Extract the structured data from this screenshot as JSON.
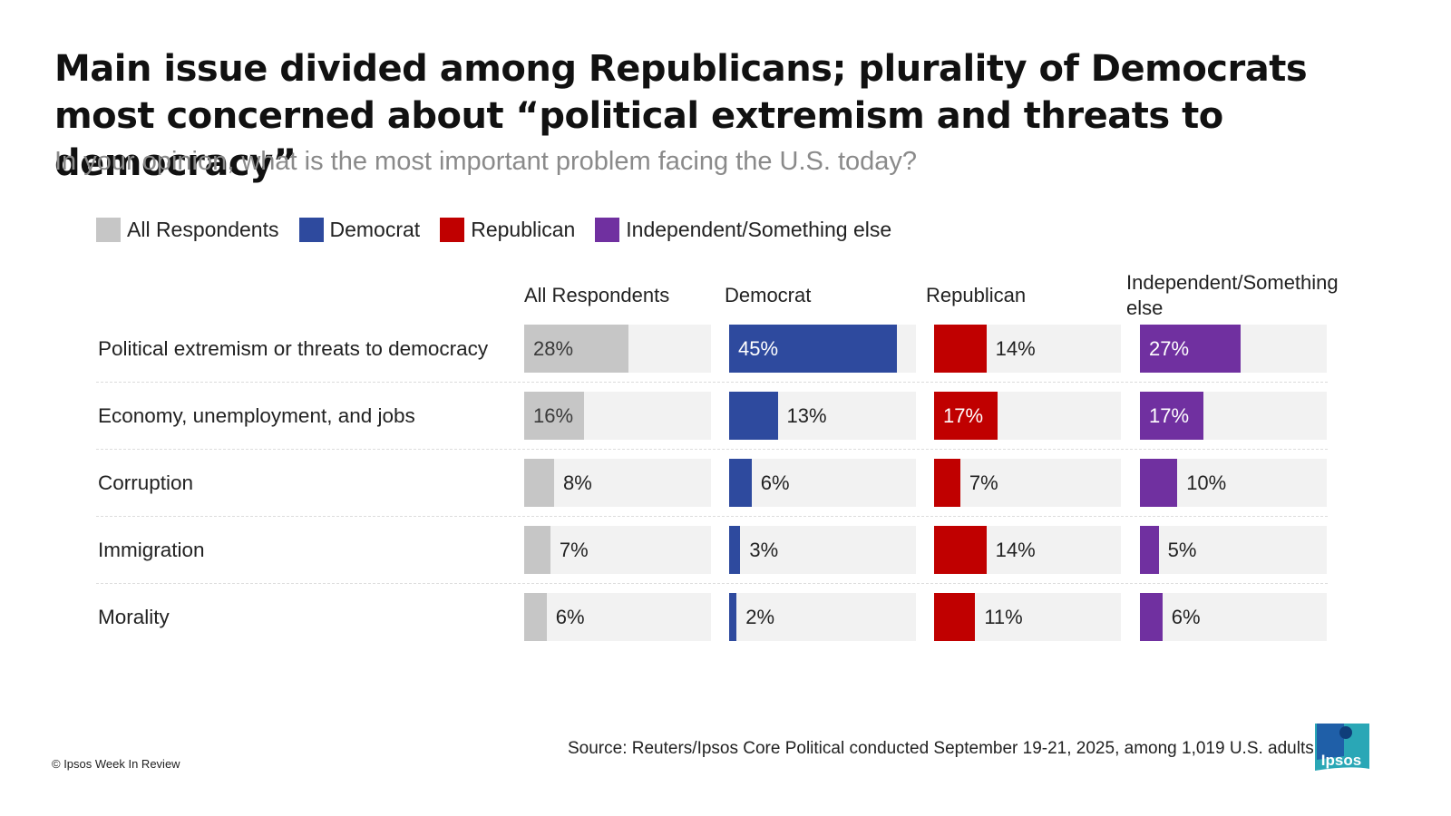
{
  "title": "Main issue divided among Republicans; plurality of Democrats most concerned about “political extremism and threats to democracy”",
  "subtitle": "In your opinion, what is the most important problem facing the U.S. today?",
  "source": "Source: Reuters/Ipsos Core Political conducted September 19-21, 2025, among 1,019 U.S. adults",
  "copyright": "© Ipsos Week In Review",
  "logo_text": "Ipsos",
  "colors": {
    "All Respondents": "#c6c6c6",
    "Democrat": "#2e4a9e",
    "Republican": "#c00000",
    "Independent/Something else": "#7030a0",
    "track": "#f2f2f2",
    "logo": "#1b9aaa"
  },
  "chart_data": {
    "type": "bar",
    "categories": [
      "Political extremism or threats to democracy",
      "Economy, unemployment, and jobs",
      "Corruption",
      "Immigration",
      "Morality"
    ],
    "series": [
      {
        "name": "All Respondents",
        "values": [
          28,
          16,
          8,
          7,
          6
        ]
      },
      {
        "name": "Democrat",
        "values": [
          45,
          13,
          6,
          3,
          2
        ]
      },
      {
        "name": "Republican",
        "values": [
          14,
          17,
          7,
          14,
          11
        ]
      },
      {
        "name": "Independent/Something else",
        "values": [
          27,
          17,
          10,
          5,
          6
        ]
      }
    ],
    "column_headers": [
      "All Respondents",
      "Democrat",
      "Republican",
      "Independent/Something else"
    ],
    "legend": [
      "All Respondents",
      "Democrat",
      "Republican",
      "Independent/Something else"
    ],
    "value_format": "%",
    "xlim": [
      0,
      50
    ],
    "legend_position": "top-left",
    "grid": false
  }
}
